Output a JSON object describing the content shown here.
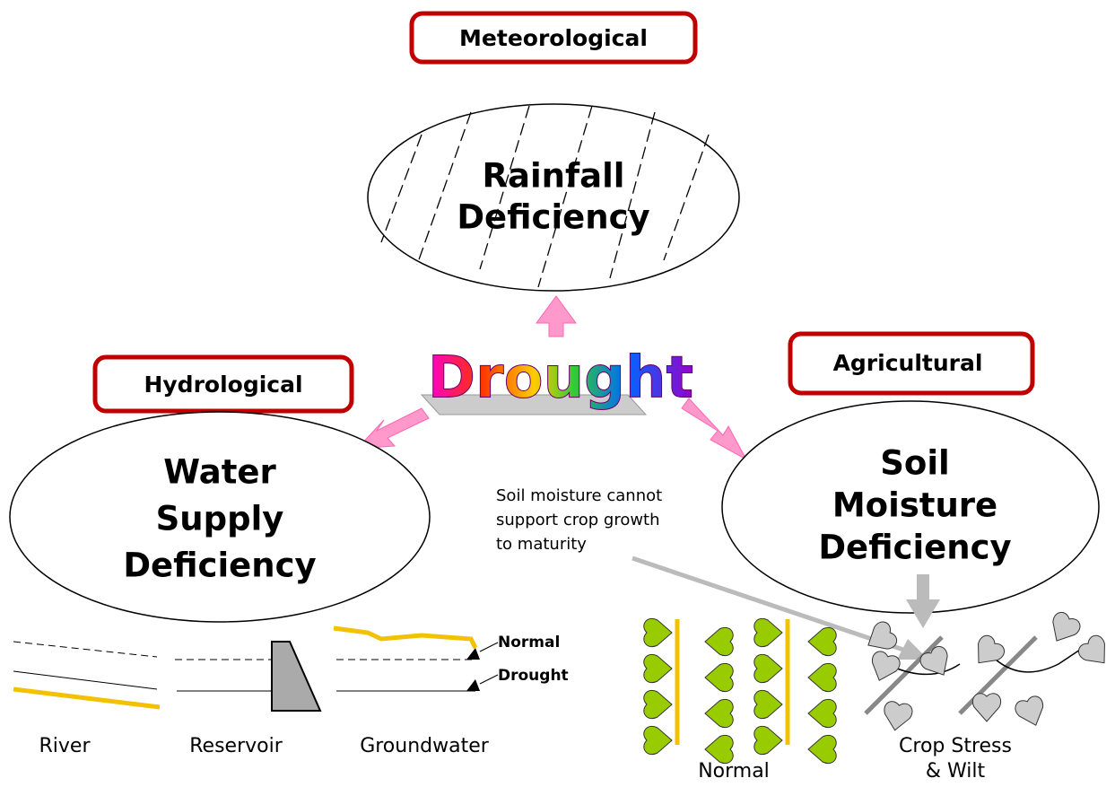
{
  "nodes": [
    {
      "category": "Meteorological",
      "lines": [
        "Rainfall",
        "Deficiency"
      ]
    },
    {
      "category": "Hydrological",
      "lines": [
        "Water",
        "Supply",
        "Deficiency"
      ]
    },
    {
      "category": "Agricultural",
      "lines": [
        "Soil",
        "Moisture",
        "Deficiency"
      ]
    }
  ],
  "center": "Drought",
  "annotation": [
    "Soil moisture cannot",
    "support crop growth",
    "to maturity"
  ],
  "hydro_panel": {
    "labels": [
      "River",
      "Reservoir",
      "Groundwater"
    ],
    "levels": [
      "Normal",
      "Drought"
    ]
  },
  "crop_panel": {
    "normal": "Normal",
    "stress": [
      "Crop Stress",
      "& Wilt"
    ]
  }
}
